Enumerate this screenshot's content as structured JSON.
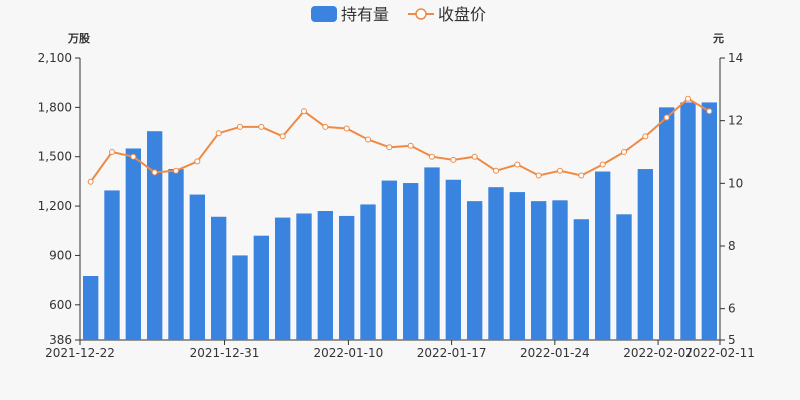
{
  "chart_data": {
    "type": "bar+line",
    "legend": {
      "position": "top-center",
      "items": [
        {
          "label": "持有量",
          "color": "#3a84e0",
          "kind": "bar"
        },
        {
          "label": "收盘价",
          "color": "#ee8a45",
          "kind": "line"
        }
      ]
    },
    "y_left": {
      "unit": "万股",
      "min": 386,
      "max": 2100,
      "ticks": [
        386,
        600,
        900,
        1200,
        1500,
        1800,
        2100
      ],
      "tick_labels": [
        "386",
        "600",
        "900",
        "1,200",
        "1,500",
        "1,800",
        "2,100"
      ]
    },
    "y_right": {
      "unit": "元",
      "min": 5,
      "max": 14,
      "ticks": [
        5,
        6,
        8,
        10,
        12,
        14
      ],
      "tick_labels": [
        "5",
        "6",
        "8",
        "10",
        "12",
        "14"
      ]
    },
    "x_tick_labels": [
      {
        "index": 0,
        "label": "2021-12-22"
      },
      {
        "index": 7,
        "label": "2021-12-31"
      },
      {
        "index": 13,
        "label": "2022-01-10"
      },
      {
        "index": 18,
        "label": "2022-01-17"
      },
      {
        "index": 23,
        "label": "2022-01-24"
      },
      {
        "index": 28,
        "label": "2022-02-07"
      },
      {
        "index": 31,
        "label": "2022-02-11"
      }
    ],
    "holdings": [
      775,
      1295,
      1550,
      1655,
      1425,
      1270,
      1135,
      900,
      1020,
      1130,
      1155,
      1170,
      1140,
      1210,
      1355,
      1340,
      1435,
      1360,
      1230,
      1315,
      1285,
      1230,
      1235,
      1120,
      1410,
      1150,
      1425,
      1800,
      1830,
      1830
    ],
    "close_price": [
      10.05,
      11.0,
      10.85,
      10.35,
      10.4,
      10.7,
      11.6,
      11.8,
      11.8,
      11.5,
      12.3,
      11.8,
      11.75,
      11.4,
      11.15,
      11.2,
      10.85,
      10.75,
      10.85,
      10.4,
      10.6,
      10.25,
      10.4,
      10.25,
      10.6,
      11.0,
      11.5,
      12.1,
      12.7,
      12.3
    ]
  }
}
